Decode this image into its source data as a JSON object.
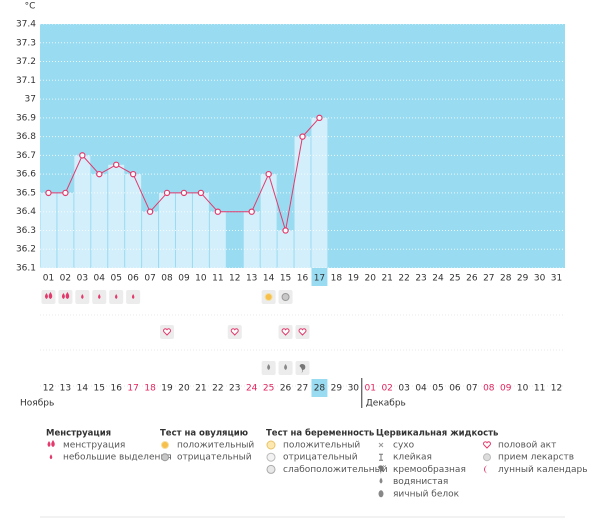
{
  "chart_data": {
    "type": "line",
    "y_unit": "°C",
    "color": "#e23a6c",
    "bar_color": "#d3effb",
    "background": "#99dbf1",
    "grid": true,
    "categories": [
      "01",
      "02",
      "03",
      "04",
      "05",
      "06",
      "07",
      "08",
      "09",
      "10",
      "11",
      "12",
      "13",
      "14",
      "15",
      "16",
      "17",
      "18",
      "19",
      "20",
      "21",
      "22",
      "23",
      "24",
      "25",
      "26",
      "27",
      "28",
      "29",
      "30",
      "31"
    ],
    "highlight_category": 16,
    "values": [
      36.5,
      36.5,
      36.7,
      36.6,
      36.65,
      36.6,
      36.4,
      36.5,
      36.5,
      36.5,
      36.4,
      null,
      36.4,
      36.6,
      36.3,
      36.8,
      36.9,
      null,
      null,
      null,
      null,
      null,
      null,
      null,
      null,
      null,
      null,
      null,
      null,
      null,
      null
    ],
    "ylim": [
      36.1,
      37.4
    ],
    "yticks": [
      36.1,
      36.2,
      36.3,
      36.4,
      36.5,
      36.6,
      36.7,
      36.8,
      36.9,
      37,
      37.1,
      37.2,
      37.3,
      37.4
    ]
  },
  "symbols": [
    {
      "day": 1,
      "row": 0,
      "icon": "menstruation"
    },
    {
      "day": 2,
      "row": 0,
      "icon": "menstruation"
    },
    {
      "day": 3,
      "row": 0,
      "icon": "spotting"
    },
    {
      "day": 4,
      "row": 0,
      "icon": "spotting"
    },
    {
      "day": 5,
      "row": 0,
      "icon": "spotting"
    },
    {
      "day": 6,
      "row": 0,
      "icon": "spotting"
    },
    {
      "day": 14,
      "row": 0,
      "icon": "ovulation-positive"
    },
    {
      "day": 15,
      "row": 0,
      "icon": "ovulation-negative"
    },
    {
      "day": 8,
      "row": 1,
      "icon": "intercourse"
    },
    {
      "day": 12,
      "row": 1,
      "icon": "intercourse"
    },
    {
      "day": 15,
      "row": 1,
      "icon": "intercourse"
    },
    {
      "day": 16,
      "row": 1,
      "icon": "intercourse"
    },
    {
      "day": 14,
      "row": 2,
      "icon": "watery"
    },
    {
      "day": 15,
      "row": 2,
      "icon": "watery"
    },
    {
      "day": 16,
      "row": 2,
      "icon": "creamy"
    }
  ],
  "dates": [
    {
      "label": "12",
      "color": "#333"
    },
    {
      "label": "13",
      "color": "#333"
    },
    {
      "label": "14",
      "color": "#333"
    },
    {
      "label": "15",
      "color": "#333"
    },
    {
      "label": "16",
      "color": "#333"
    },
    {
      "label": "17",
      "color": "#e0245e"
    },
    {
      "label": "18",
      "color": "#e0245e"
    },
    {
      "label": "19",
      "color": "#333"
    },
    {
      "label": "20",
      "color": "#333"
    },
    {
      "label": "21",
      "color": "#333"
    },
    {
      "label": "22",
      "color": "#333"
    },
    {
      "label": "23",
      "color": "#333"
    },
    {
      "label": "24",
      "color": "#e0245e"
    },
    {
      "label": "25",
      "color": "#e0245e"
    },
    {
      "label": "26",
      "color": "#333"
    },
    {
      "label": "27",
      "color": "#333"
    },
    {
      "label": "28",
      "color": "#333",
      "highlight": true
    },
    {
      "label": "29",
      "color": "#333"
    },
    {
      "label": "30",
      "color": "#333"
    },
    {
      "label": "01",
      "color": "#e0245e"
    },
    {
      "label": "02",
      "color": "#e0245e"
    },
    {
      "label": "03",
      "color": "#333"
    },
    {
      "label": "04",
      "color": "#333"
    },
    {
      "label": "05",
      "color": "#333"
    },
    {
      "label": "06",
      "color": "#333"
    },
    {
      "label": "07",
      "color": "#333"
    },
    {
      "label": "08",
      "color": "#e0245e"
    },
    {
      "label": "09",
      "color": "#e0245e"
    },
    {
      "label": "10",
      "color": "#333"
    },
    {
      "label": "11",
      "color": "#333"
    },
    {
      "label": "12",
      "color": "#333"
    }
  ],
  "months": [
    {
      "label": "Ноябрь",
      "start": 0
    },
    {
      "label": "Декабрь",
      "start": 19
    }
  ],
  "legend": [
    {
      "title": "Менструация",
      "items": [
        {
          "label": "менструация",
          "icon": "menstruation"
        },
        {
          "label": "небольшие выделения",
          "icon": "spotting"
        }
      ]
    },
    {
      "title": "Тест на овуляцию",
      "items": [
        {
          "label": "положительный",
          "icon": "ovulation-positive"
        },
        {
          "label": "отрицательный",
          "icon": "ovulation-negative"
        }
      ]
    },
    {
      "title": "Тест на беременность",
      "items": [
        {
          "label": "положительный",
          "icon": "pregnancy-positive"
        },
        {
          "label": "отрицательный",
          "icon": "pregnancy-negative"
        },
        {
          "label": "слабоположительный",
          "icon": "pregnancy-weak"
        }
      ]
    },
    {
      "title": "Цервикальная жидкость",
      "items": [
        {
          "label": "сухо",
          "icon": "dry"
        },
        {
          "label": "клейкая",
          "icon": "sticky"
        },
        {
          "label": "кремообразная",
          "icon": "creamy"
        },
        {
          "label": "водянистая",
          "icon": "watery"
        },
        {
          "label": "яичный белок",
          "icon": "eggwhite"
        }
      ]
    }
  ],
  "legend_extra": [
    {
      "label": "половой акт",
      "icon": "intercourse"
    },
    {
      "label": "прием лекарств",
      "icon": "medicine"
    },
    {
      "label": "лунный календарь",
      "icon": "lunar"
    }
  ]
}
